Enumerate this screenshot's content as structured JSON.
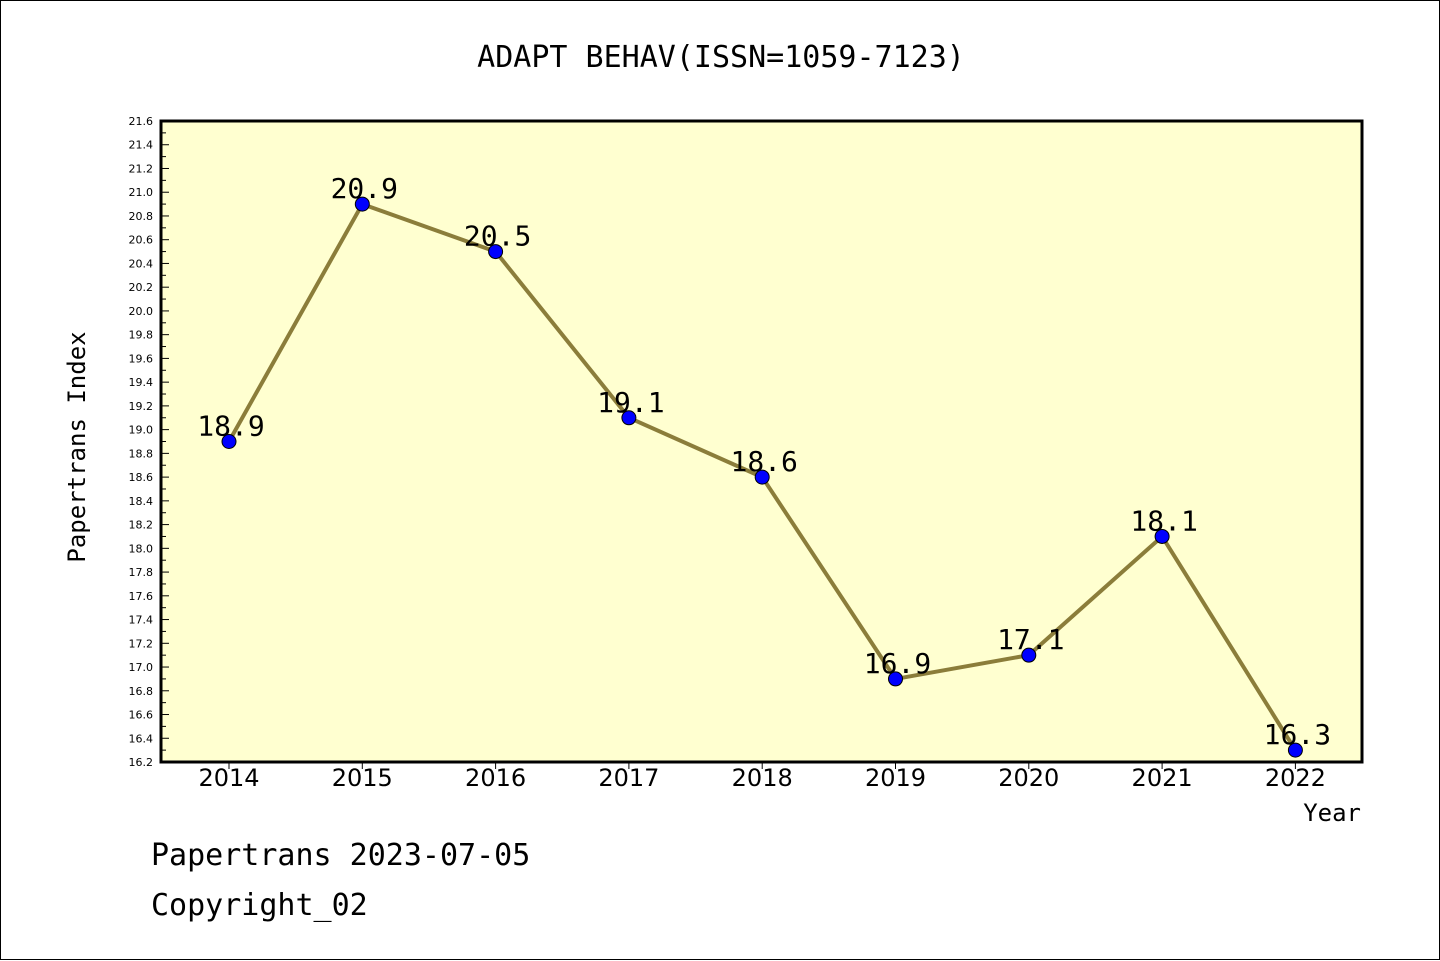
{
  "chart_data": {
    "type": "line",
    "title": "ADAPT BEHAV(ISSN=1059-7123)",
    "xlabel": "Year",
    "ylabel": "Papertrans Index",
    "categories": [
      "2014",
      "2015",
      "2016",
      "2017",
      "2018",
      "2019",
      "2020",
      "2021",
      "2022"
    ],
    "values": [
      18.9,
      20.9,
      20.5,
      19.1,
      18.6,
      16.9,
      17.1,
      18.1,
      16.3
    ],
    "data_labels": [
      "18.9",
      "20.9",
      "20.5",
      "19.1",
      "18.6",
      "16.9",
      "17.1",
      "18.1",
      "16.3"
    ],
    "ylim": [
      16.2,
      21.6
    ],
    "yticks": [
      "16.2",
      "16.4",
      "16.6",
      "16.8",
      "17.0",
      "17.2",
      "17.4",
      "17.6",
      "17.8",
      "18.0",
      "18.2",
      "18.4",
      "18.6",
      "18.8",
      "19.0",
      "19.2",
      "19.4",
      "19.6",
      "19.8",
      "20.0",
      "20.2",
      "20.4",
      "20.6",
      "20.8",
      "21.0",
      "21.2",
      "21.4",
      "21.6"
    ],
    "grid": false,
    "colors": {
      "plot_background": "#ffffd0",
      "line": "#8b7d3a",
      "marker": "#0000ff"
    }
  },
  "footer": {
    "line1": "Papertrans 2023-07-05",
    "line2": "Copyright_02"
  }
}
